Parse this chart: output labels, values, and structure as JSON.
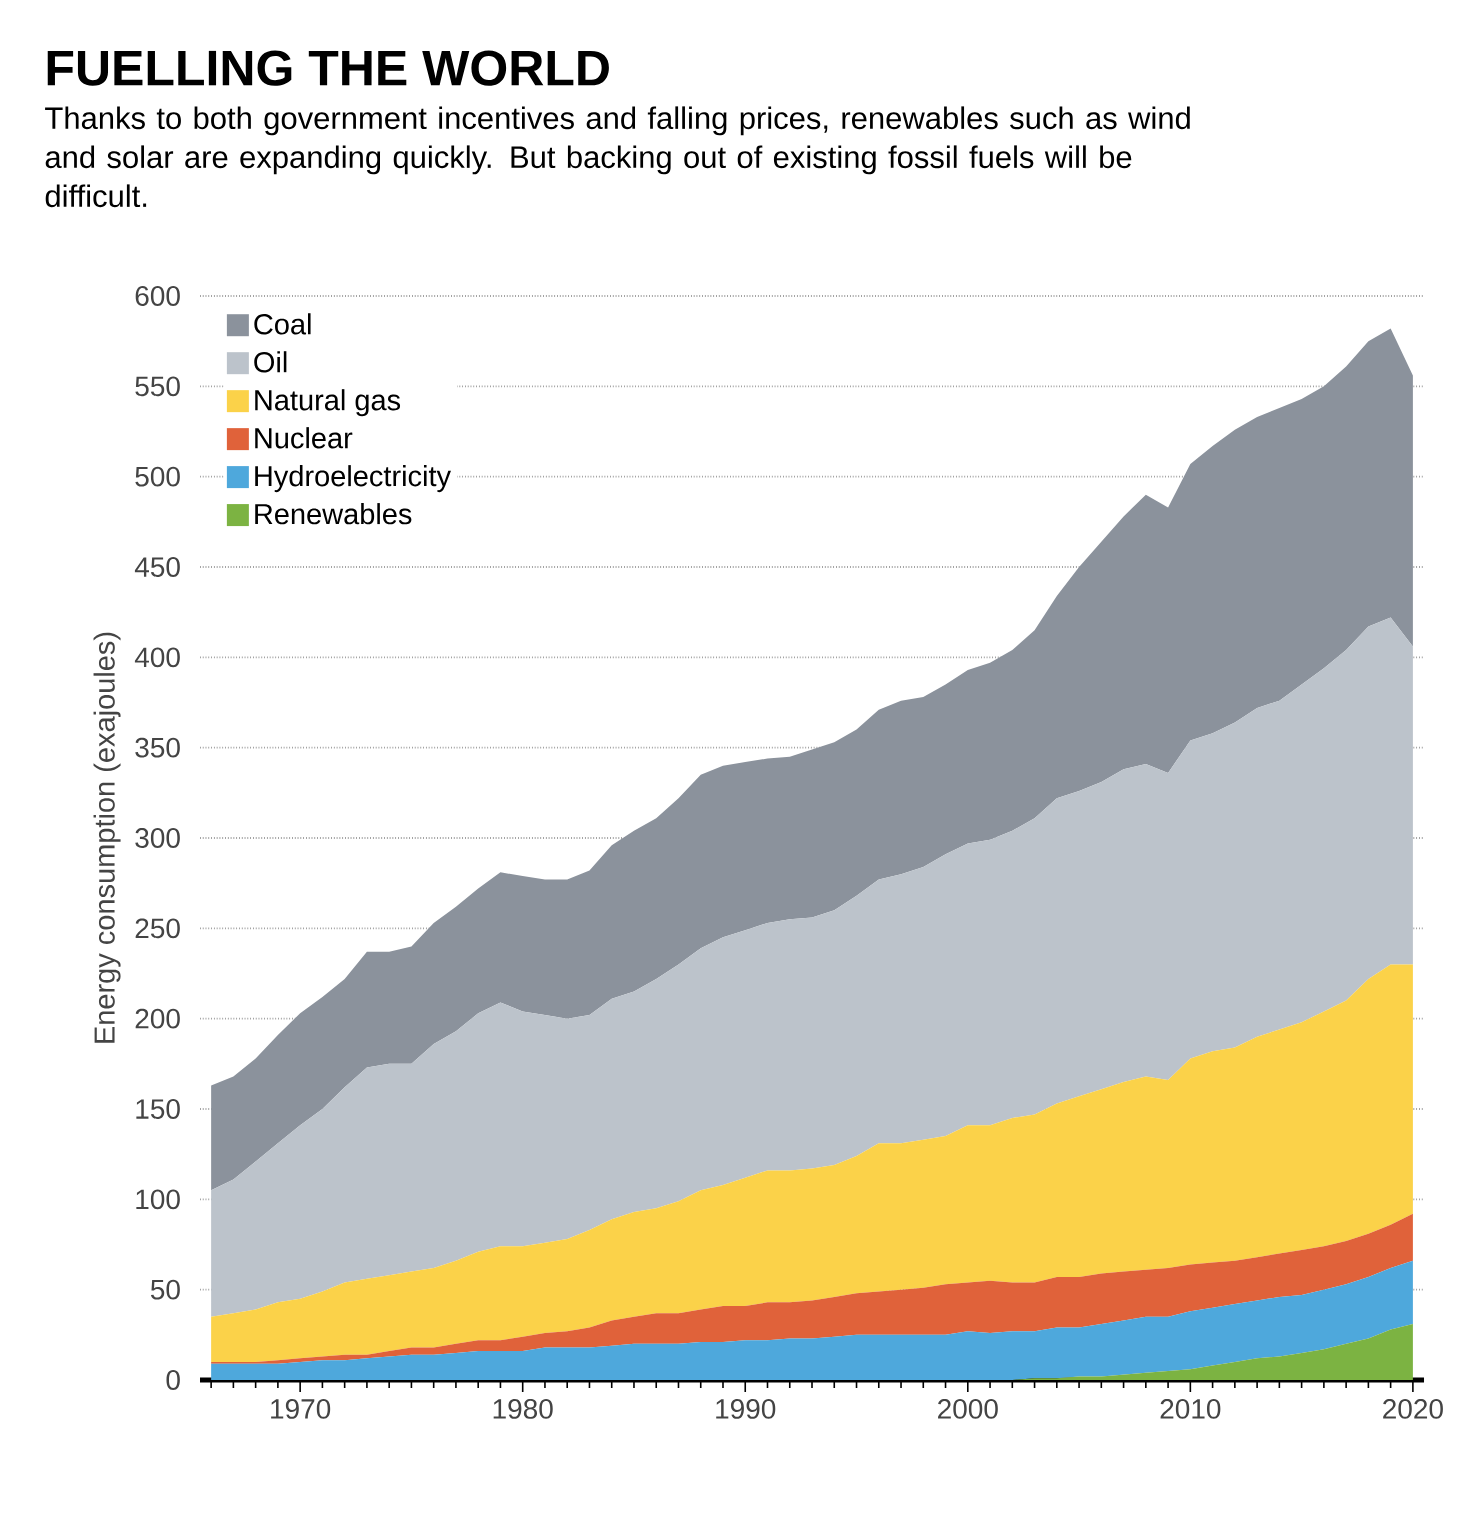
{
  "chart_data": {
    "type": "area",
    "stacked": true,
    "title": "FUELLING THE WORLD",
    "subtitle": "Thanks to both government incentives and falling prices, renewables such as wind and solar are expanding quickly. But backing out of existing fossil fuels will be difficult.",
    "ylabel": "Energy consumption (exajoules)",
    "x": [
      1966,
      1967,
      1968,
      1969,
      1970,
      1971,
      1972,
      1973,
      1974,
      1975,
      1976,
      1977,
      1978,
      1979,
      1980,
      1981,
      1982,
      1983,
      1984,
      1985,
      1986,
      1987,
      1988,
      1989,
      1990,
      1991,
      1992,
      1993,
      1994,
      1995,
      1996,
      1997,
      1998,
      1999,
      2000,
      2001,
      2002,
      2003,
      2004,
      2005,
      2006,
      2007,
      2008,
      2009,
      2010,
      2011,
      2012,
      2013,
      2014,
      2015,
      2016,
      2017,
      2018,
      2019,
      2020
    ],
    "series": [
      {
        "name": "Renewables",
        "color": "#7cb342",
        "values": [
          0,
          0,
          0,
          0,
          0,
          0,
          0,
          0,
          0,
          0,
          0,
          0,
          0,
          0,
          0,
          0,
          0,
          0,
          0,
          0,
          0,
          0,
          0,
          0,
          0,
          0,
          0,
          0,
          0,
          0,
          0,
          0,
          0,
          0,
          0,
          0,
          0,
          1,
          1,
          2,
          2,
          3,
          4,
          5,
          6,
          8,
          10,
          12,
          13,
          15,
          17,
          20,
          23,
          28,
          31
        ]
      },
      {
        "name": "Hydroelectricity",
        "color": "#4ea8dc",
        "values": [
          9,
          9,
          9,
          9,
          10,
          11,
          11,
          12,
          13,
          14,
          14,
          15,
          16,
          16,
          16,
          18,
          18,
          18,
          19,
          20,
          20,
          20,
          21,
          21,
          22,
          22,
          23,
          23,
          24,
          25,
          25,
          25,
          25,
          25,
          27,
          26,
          27,
          26,
          28,
          27,
          29,
          30,
          31,
          30,
          32,
          32,
          32,
          32,
          33,
          32,
          33,
          33,
          34,
          34,
          35
        ]
      },
      {
        "name": "Nuclear",
        "color": "#e0623a",
        "values": [
          1,
          1,
          1,
          2,
          2,
          2,
          3,
          2,
          3,
          4,
          4,
          5,
          6,
          6,
          8,
          8,
          9,
          11,
          14,
          15,
          17,
          17,
          18,
          20,
          19,
          21,
          20,
          21,
          22,
          23,
          24,
          25,
          26,
          28,
          27,
          29,
          27,
          27,
          28,
          28,
          28,
          27,
          26,
          27,
          26,
          25,
          24,
          24,
          24,
          25,
          24,
          24,
          24,
          24,
          26
        ]
      },
      {
        "name": "Natural gas",
        "color": "#fbd249",
        "values": [
          25,
          27,
          29,
          32,
          33,
          36,
          40,
          42,
          42,
          42,
          44,
          46,
          49,
          52,
          50,
          50,
          51,
          54,
          56,
          58,
          58,
          62,
          66,
          67,
          71,
          73,
          73,
          73,
          73,
          76,
          82,
          81,
          82,
          82,
          87,
          86,
          91,
          93,
          96,
          100,
          102,
          105,
          107,
          104,
          114,
          117,
          118,
          122,
          124,
          126,
          130,
          133,
          141,
          144,
          138
        ]
      },
      {
        "name": "Oil",
        "color": "#bcc3cb",
        "values": [
          70,
          74,
          82,
          88,
          96,
          101,
          108,
          117,
          117,
          115,
          124,
          127,
          132,
          135,
          130,
          126,
          122,
          119,
          122,
          122,
          127,
          131,
          134,
          137,
          137,
          137,
          139,
          139,
          141,
          144,
          146,
          149,
          151,
          156,
          156,
          158,
          159,
          164,
          169,
          169,
          170,
          173,
          173,
          170,
          176,
          176,
          180,
          182,
          182,
          187,
          190,
          194,
          195,
          192,
          176
        ]
      },
      {
        "name": "Coal",
        "color": "#8b929c",
        "values": [
          58,
          57,
          57,
          60,
          62,
          62,
          60,
          64,
          62,
          65,
          67,
          69,
          69,
          72,
          75,
          75,
          77,
          80,
          85,
          89,
          89,
          92,
          96,
          95,
          93,
          91,
          90,
          93,
          93,
          92,
          94,
          96,
          94,
          94,
          96,
          98,
          100,
          104,
          112,
          124,
          133,
          140,
          149,
          147,
          153,
          159,
          162,
          161,
          162,
          158,
          156,
          157,
          158,
          160,
          150
        ]
      }
    ],
    "xlim": [
      1965.5,
      2020.5
    ],
    "ylim": [
      0,
      600
    ],
    "xticks": [
      {
        "value": 1966,
        "label": null
      },
      {
        "value": 1967,
        "label": null
      },
      {
        "value": 1968,
        "label": null
      },
      {
        "value": 1969,
        "label": null
      },
      1970,
      {
        "value": 1971,
        "label": null
      },
      {
        "value": 1972,
        "label": null
      },
      {
        "value": 1973,
        "label": null
      },
      {
        "value": 1974,
        "label": null
      },
      {
        "value": 1975,
        "label": null
      },
      {
        "value": 1976,
        "label": null
      },
      {
        "value": 1977,
        "label": null
      },
      {
        "value": 1978,
        "label": null
      },
      {
        "value": 1979,
        "label": null
      },
      1980,
      {
        "value": 1981,
        "label": null
      },
      {
        "value": 1982,
        "label": null
      },
      {
        "value": 1983,
        "label": null
      },
      {
        "value": 1984,
        "label": null
      },
      {
        "value": 1985,
        "label": null
      },
      {
        "value": 1986,
        "label": null
      },
      {
        "value": 1987,
        "label": null
      },
      {
        "value": 1988,
        "label": null
      },
      {
        "value": 1989,
        "label": null
      },
      1990,
      {
        "value": 1991,
        "label": null
      },
      {
        "value": 1992,
        "label": null
      },
      {
        "value": 1993,
        "label": null
      },
      {
        "value": 1994,
        "label": null
      },
      {
        "value": 1995,
        "label": null
      },
      {
        "value": 1996,
        "label": null
      },
      {
        "value": 1997,
        "label": null
      },
      {
        "value": 1998,
        "label": null
      },
      {
        "value": 1999,
        "label": null
      },
      2000,
      {
        "value": 2001,
        "label": null
      },
      {
        "value": 2002,
        "label": null
      },
      {
        "value": 2003,
        "label": null
      },
      {
        "value": 2004,
        "label": null
      },
      {
        "value": 2005,
        "label": null
      },
      {
        "value": 2006,
        "label": null
      },
      {
        "value": 2007,
        "label": null
      },
      {
        "value": 2008,
        "label": null
      },
      {
        "value": 2009,
        "label": null
      },
      2010,
      {
        "value": 2011,
        "label": null
      },
      {
        "value": 2012,
        "label": null
      },
      {
        "value": 2013,
        "label": null
      },
      {
        "value": 2014,
        "label": null
      },
      {
        "value": 2015,
        "label": null
      },
      {
        "value": 2016,
        "label": null
      },
      {
        "value": 2017,
        "label": null
      },
      {
        "value": 2018,
        "label": null
      },
      {
        "value": 2019,
        "label": null
      },
      2020
    ],
    "yticks": [
      0,
      50,
      100,
      150,
      200,
      250,
      300,
      350,
      400,
      450,
      500,
      550,
      600
    ],
    "grid": "y",
    "legend": "top left"
  }
}
